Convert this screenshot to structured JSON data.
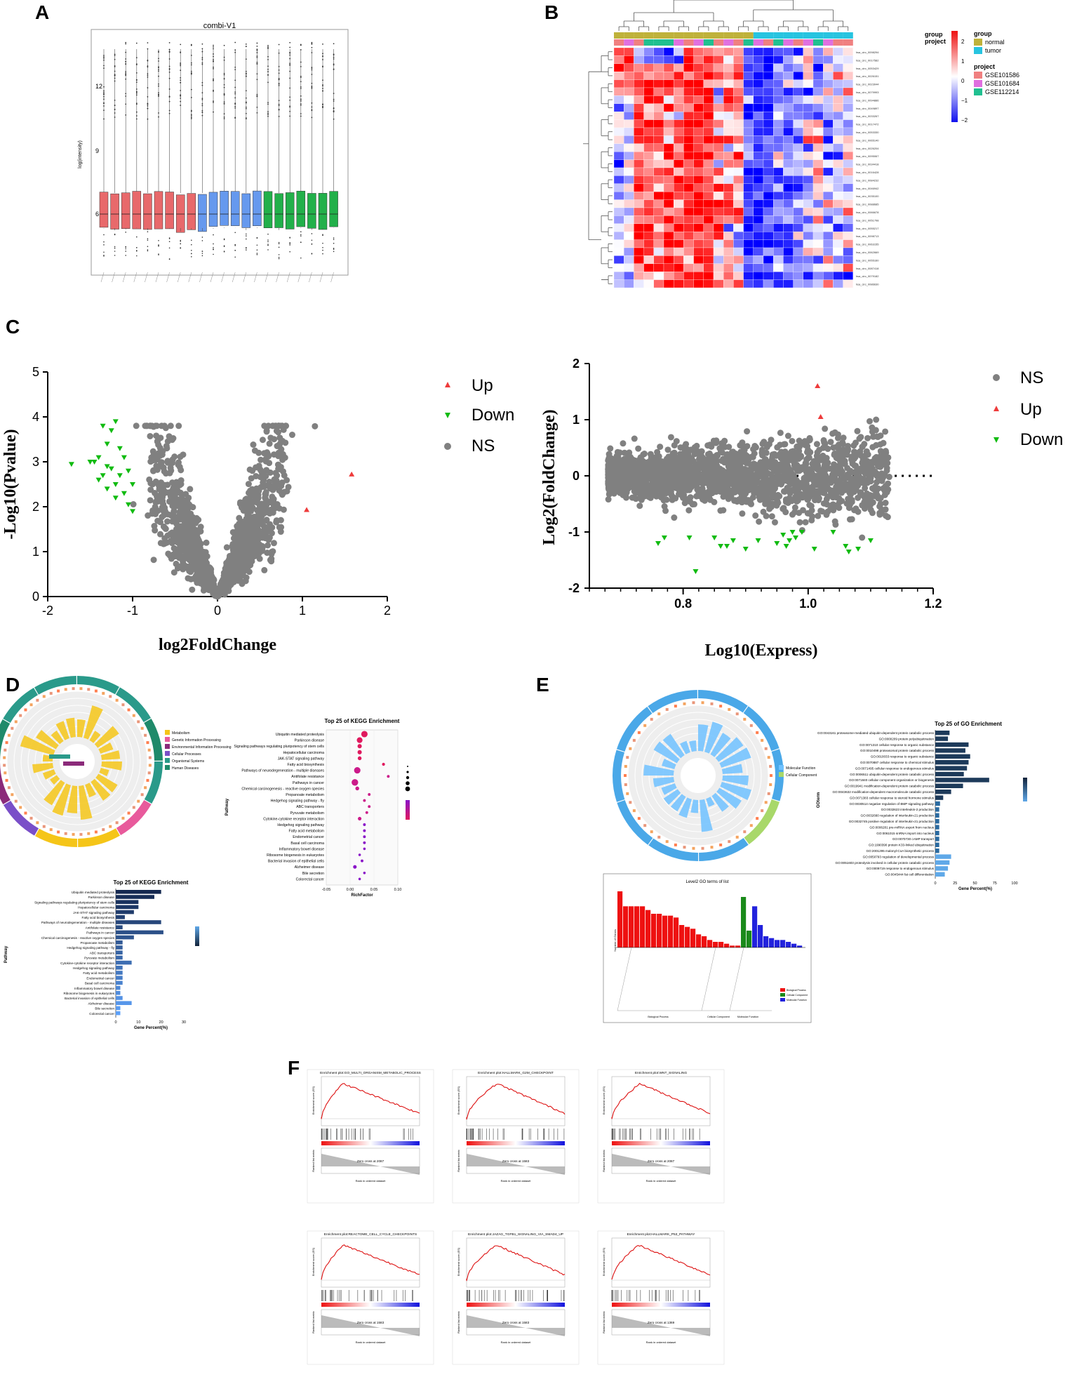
{
  "panels": {
    "A": "A",
    "B": "B",
    "C": "C",
    "D": "D",
    "E": "E",
    "F": "F"
  },
  "colors": {
    "red": "#e8696b",
    "blue": "#6699ee",
    "green": "#22b04a",
    "grey": "#808080",
    "up": "#ee3b3b",
    "down": "#11bb11",
    "heat_hi": "#ee1111",
    "heat_lo": "#1111ee"
  },
  "panelA": {
    "title": "combi-V1",
    "ylabel": "log(intensity)",
    "yticks": [
      "12",
      "9",
      "6"
    ],
    "box_groups": [
      {
        "color": "red",
        "count": 9
      },
      {
        "color": "blue",
        "count": 6
      },
      {
        "color": "green",
        "count": 7
      }
    ]
  },
  "panelB": {
    "legend_group_title": "group",
    "legend_group": [
      "normal",
      "tumor"
    ],
    "legend_project_title": "project",
    "legend_project": [
      "GSE101586",
      "GSE101684",
      "GSE112214"
    ],
    "scale_ticks": [
      "2",
      "1",
      "0",
      "−1",
      "−2"
    ],
    "row_label": "hsa_circ_00",
    "annotation_labels": [
      "group",
      "project"
    ]
  },
  "panelC_volcano": {
    "chart_data": {
      "type": "scatter",
      "xlabel": "log2FoldChange",
      "ylabel": "-Log10(Pvalue)",
      "xlim": [
        -2,
        2
      ],
      "ylim": [
        0,
        5
      ],
      "xticks": [
        "-2",
        "-1",
        "0",
        "1",
        "2"
      ],
      "yticks": [
        "0",
        "1",
        "2",
        "3",
        "4",
        "5"
      ],
      "legend": [
        "Up",
        "Down",
        "NS"
      ],
      "up_points": [
        [
          1.58,
          2.72
        ],
        [
          1.05,
          1.93
        ]
      ],
      "down_points": [
        [
          -1.72,
          2.95
        ],
        [
          -1.4,
          3.1
        ],
        [
          -1.3,
          3.4
        ],
        [
          -1.25,
          3.7
        ],
        [
          -1.2,
          3.9
        ],
        [
          -1.1,
          3.1
        ],
        [
          -1.05,
          2.8
        ],
        [
          -1.0,
          2.5
        ],
        [
          -1.15,
          2.7
        ],
        [
          -1.3,
          2.9
        ],
        [
          -1.4,
          2.6
        ],
        [
          -1.35,
          2.7
        ],
        [
          -1.2,
          2.5
        ],
        [
          -1.25,
          2.85
        ],
        [
          -1.45,
          3.0
        ],
        [
          -1.1,
          2.3
        ],
        [
          -1.05,
          2.05
        ],
        [
          -1.0,
          1.9
        ],
        [
          -1.2,
          2.2
        ],
        [
          -1.3,
          2.4
        ],
        [
          -1.5,
          3.0
        ],
        [
          -1.35,
          3.8
        ],
        [
          -1.15,
          3.3
        ]
      ]
    }
  },
  "panelC_ma": {
    "chart_data": {
      "type": "scatter",
      "xlabel": "Log10(Express)",
      "ylabel": "Log2(FoldChange)",
      "xlim": [
        0.65,
        1.2
      ],
      "ylim": [
        -2,
        2
      ],
      "xticks": [
        "0.8",
        "1.0",
        "1.2"
      ],
      "yticks": [
        "2",
        "1",
        "0",
        "-1",
        "-2"
      ],
      "legend": [
        "NS",
        "Up",
        "Down"
      ],
      "up_points": [
        [
          1.015,
          1.6
        ],
        [
          1.02,
          1.05
        ]
      ],
      "down_points": [
        [
          0.76,
          -1.2
        ],
        [
          0.77,
          -1.1
        ],
        [
          0.81,
          -1.1
        ],
        [
          0.82,
          -1.7
        ],
        [
          0.85,
          -1.1
        ],
        [
          0.86,
          -1.25
        ],
        [
          0.87,
          -1.25
        ],
        [
          0.88,
          -1.15
        ],
        [
          0.9,
          -1.3
        ],
        [
          0.92,
          -1.15
        ],
        [
          0.95,
          -1.2
        ],
        [
          0.96,
          -1.05
        ],
        [
          0.965,
          -1.25
        ],
        [
          0.97,
          -1.15
        ],
        [
          0.975,
          -1.0
        ],
        [
          0.98,
          -1.1
        ],
        [
          0.99,
          -1.0
        ],
        [
          1.01,
          -1.3
        ],
        [
          1.04,
          -1.0
        ],
        [
          1.06,
          -1.25
        ],
        [
          1.065,
          -1.35
        ],
        [
          1.08,
          -1.3
        ],
        [
          1.1,
          -1.15
        ]
      ]
    }
  },
  "panelD": {
    "kegg_dot_title": "Top 25 of KEGG Enrichment",
    "kegg_bar_title": "Top 25 of KEGG Enrichment",
    "dot_xlabel": "RichFactor",
    "dot_xticks": [
      "-0.05",
      "0.00",
      "0.05",
      "0.10"
    ],
    "bar_xlabel": "Gene Percent(%)",
    "bar_xticks": [
      "0",
      "10",
      "20",
      "30"
    ],
    "ylabel": "Pathway",
    "pathways": [
      "Ubiquitin mediated proteolysis",
      "Parkinson disease",
      "Signaling pathways regulating pluripotency of stem cells",
      "Hepatocellular carcinoma",
      "JAK-STAT signaling pathway",
      "Fatty acid biosynthesis",
      "Pathways of neurodegeneration - multiple diseases",
      "Antifolate resistance",
      "Pathways in cancer",
      "Chemical carcinogenesis - reactive oxygen species",
      "Propanoate metabolism",
      "Hedgehog signaling pathway - fly",
      "ABC transporters",
      "Pyruvate metabolism",
      "Cytokine-cytokine receptor interaction",
      "Hedgehog signaling pathway",
      "Fatty acid metabolism",
      "Endometrial cancer",
      "Basal cell carcinoma",
      "Inflammatory bowel disease",
      "Ribosome biogenesis in eukaryotes",
      "Bacterial invasion of epithelial cells",
      "Alzheimer disease",
      "Bile secretion",
      "Colorectal cancer"
    ],
    "bar_values": [
      20,
      17,
      10,
      10,
      8,
      4,
      20,
      3,
      21,
      8,
      3,
      3,
      3,
      3,
      7,
      3,
      3,
      3,
      3,
      2,
      2,
      3,
      7,
      2,
      2
    ],
    "dot_values": [
      0.03,
      0.02,
      0.02,
      0.02,
      0.02,
      0.07,
      0.015,
      0.08,
      0.01,
      0.015,
      0.04,
      0.03,
      0.04,
      0.035,
      0.02,
      0.03,
      0.03,
      0.03,
      0.03,
      0.03,
      0.02,
      0.025,
      0.01,
      0.03,
      0.02
    ],
    "circle_legend": [
      "Metabolism",
      "Genetic Information Processing",
      "Environmental Information Processing",
      "Cellular Processes",
      "Organismal Systems",
      "Human Diseases"
    ],
    "circle_legend_colors": [
      "#f5c518",
      "#e85a9c",
      "#8b2a7a",
      "#7a4fc8",
      "#2a9a8a",
      "#1f8a6a"
    ]
  },
  "panelE": {
    "go_bar_title": "Top 25 of GO Enrichment",
    "go_xlabel": "Gene Percent(%)",
    "go_xticks": [
      "0",
      "25",
      "50",
      "75",
      "100"
    ],
    "go_ylabel": "GOterm",
    "go_terms": [
      "GO:0043161 proteasome-mediated ubiquitin-dependent protein catabolic process",
      "GO:0000209 protein polyubiquitination",
      "GO:0071310 cellular response to organic substance",
      "GO:0010498 proteasomal protein catabolic process",
      "GO:0010033 response to organic substance",
      "GO:0070887 cellular response to chemical stimulus",
      "GO:0071495 cellular response to endogenous stimulus",
      "GO:0006511 ubiquitin-dependent protein catabolic process",
      "GO:0071840 cellular component organization or biogenesis",
      "GO:0019941 modification-dependent protein catabolic process",
      "GO:0043632 modification-dependent macromolecule catabolic process",
      "GO:0071383 cellular response to steroid hormone stimulus",
      "GO:0030514 negative regulation of BMP signaling pathway",
      "GO:0032623 interleukin-2 production",
      "GO:0032660 regulation of interleukin-21 production",
      "GO:0032745 positive regulation of interleukin-21 production",
      "GO:0006281 pre-miRNA export from nucleus",
      "GO:0061015 snRNA import into nucleus",
      "GO:0070730 cAMP transport",
      "GO:1990390 protein K33-linked ubiquitination",
      "GO:2001295 malonyl-CoA biosynthetic process",
      "GO:0050793 regulation of developmental process",
      "GO:0051603 proteolysis involved in cellular protein catabolic process",
      "GO:0009719 response to endogenous stimulus",
      "GO:0045444 fat cell differentiation"
    ],
    "go_values": [
      18,
      16,
      42,
      38,
      44,
      42,
      40,
      36,
      68,
      35,
      20,
      10,
      6,
      5,
      5,
      5,
      5,
      5,
      5,
      5,
      5,
      20,
      18,
      16,
      12
    ],
    "go_bar_hist_title": "Level2 GO terms of list",
    "go_hist_ylabel": "Number of Genes",
    "go_hist_categories": [
      "Biological Process",
      "Cellular Component",
      "Molecular Function"
    ],
    "go_hist_red": [
      30,
      22,
      22,
      22,
      22,
      20,
      18,
      18,
      17,
      17,
      16,
      12,
      11,
      10,
      7,
      6,
      4,
      3,
      3,
      2,
      1,
      1
    ],
    "go_hist_green": [
      27,
      9
    ],
    "go_hist_blue": [
      22,
      12,
      6,
      5,
      4,
      4,
      3,
      2,
      1
    ],
    "circle_legend": [
      "Molecular Function",
      "Cellular Component"
    ],
    "circle_legend_colors": [
      "#6ec1ff",
      "#a8d86a"
    ]
  },
  "panelF": {
    "plots": [
      {
        "title": "Enrichment plot:GO_MULTI_ORGANISM_METABOLIC_PROCESS",
        "zero": "Zero cross at 2087"
      },
      {
        "title": "Enrichment plot:HALLMARK_G2M_CHECKPOINT",
        "zero": "Zero cross at 1583"
      },
      {
        "title": "Enrichment plot:WNT_SIGNALING",
        "zero": "Zero cross at 2087"
      },
      {
        "title": "Enrichment plot:REACTOME_CELL_CYCLE_CHECKPOINTS",
        "zero": "Zero cross at 1583"
      },
      {
        "title": "Enrichment plot:JAZAG_TGFB1_SIGNALING_VIA_SMAD4_UP",
        "zero": "Zero cross at 1583"
      },
      {
        "title": "Enrichment plot:HALLMARK_P53_PATHWAY",
        "zero": "Zero cross at 1369"
      }
    ],
    "y_es": "Enrichment score (ES)",
    "y_rank": "Ranked list metric",
    "x_rank": "Rank in ordered dataset"
  }
}
